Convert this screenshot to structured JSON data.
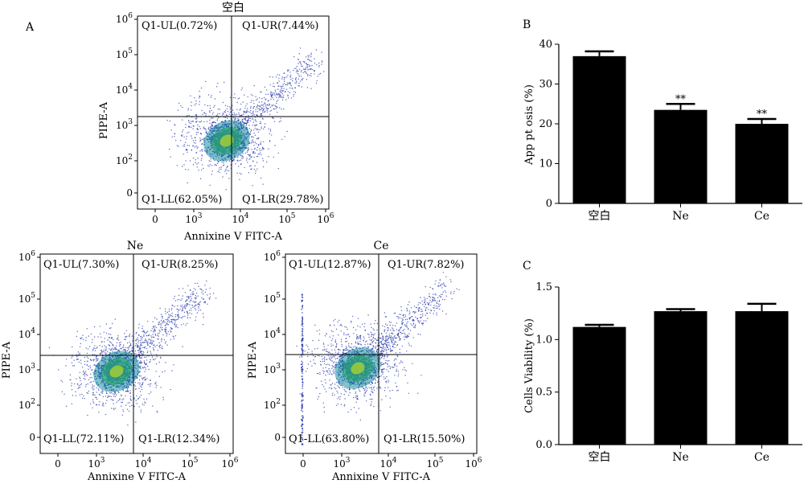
{
  "panel_letters": {
    "a": "A",
    "b": "B",
    "c": "C"
  },
  "flow": {
    "xlabel": "Annixine V FITC-A",
    "ylabel": "PIPE-A",
    "x_ticks": [
      "0",
      "10",
      "10",
      "10",
      "10"
    ],
    "x_tick_exps": [
      "",
      "3",
      "4",
      "5",
      "6"
    ],
    "y_ticks": [
      "0",
      "10",
      "10",
      "10",
      "10",
      "10"
    ],
    "y_tick_exps": [
      "",
      "2",
      "3",
      "4",
      "5",
      "6"
    ],
    "plots": [
      {
        "title": "空白",
        "quadrants": {
          "ul": "Q1-UL(0.72%)",
          "ur": "Q1-UR(7.44%)",
          "ll": "Q1-LL(62.05%)",
          "lr": "Q1-LR(29.78%)"
        }
      },
      {
        "title": "Ne",
        "quadrants": {
          "ul": "Q1-UL(7.30%)",
          "ur": "Q1-UR(8.25%)",
          "ll": "Q1-LL(72.11%)",
          "lr": "Q1-LR(12.34%)"
        }
      },
      {
        "title": "Ce",
        "quadrants": {
          "ul": "Q1-UL(12.87%)",
          "ur": "Q1-UR(7.82%)",
          "ll": "Q1-LL(63.80%)",
          "lr": "Q1-LR(15.50%)"
        }
      }
    ],
    "dot_color": "#2233aa",
    "core_colors": [
      "#1a8fa0",
      "#2fae6a",
      "#b9d92a"
    ]
  },
  "chart_data": [
    {
      "type": "bar",
      "panel": "B",
      "categories": [
        "空白",
        "Ne",
        "Ce"
      ],
      "values": [
        37,
        23.5,
        20
      ],
      "errors": [
        1.2,
        1.5,
        1.2
      ],
      "annotations": [
        "",
        "**",
        "**"
      ],
      "ylabel": "App pt osis (%)",
      "xlabel": "",
      "ylim": [
        0,
        40
      ],
      "yticks": [
        "0",
        "10",
        "20",
        "30",
        "40"
      ],
      "bar_color": "#000000"
    },
    {
      "type": "bar",
      "panel": "C",
      "categories": [
        "空白",
        "Ne",
        "Ce"
      ],
      "values": [
        1.12,
        1.27,
        1.27
      ],
      "errors": [
        0.02,
        0.02,
        0.07
      ],
      "annotations": [
        "",
        "",
        ""
      ],
      "ylabel": "Cells Viability (%)",
      "xlabel": "",
      "ylim": [
        0,
        1.5
      ],
      "yticks": [
        "0.0",
        "0.5",
        "1.0",
        "1.5"
      ],
      "bar_color": "#000000"
    }
  ]
}
